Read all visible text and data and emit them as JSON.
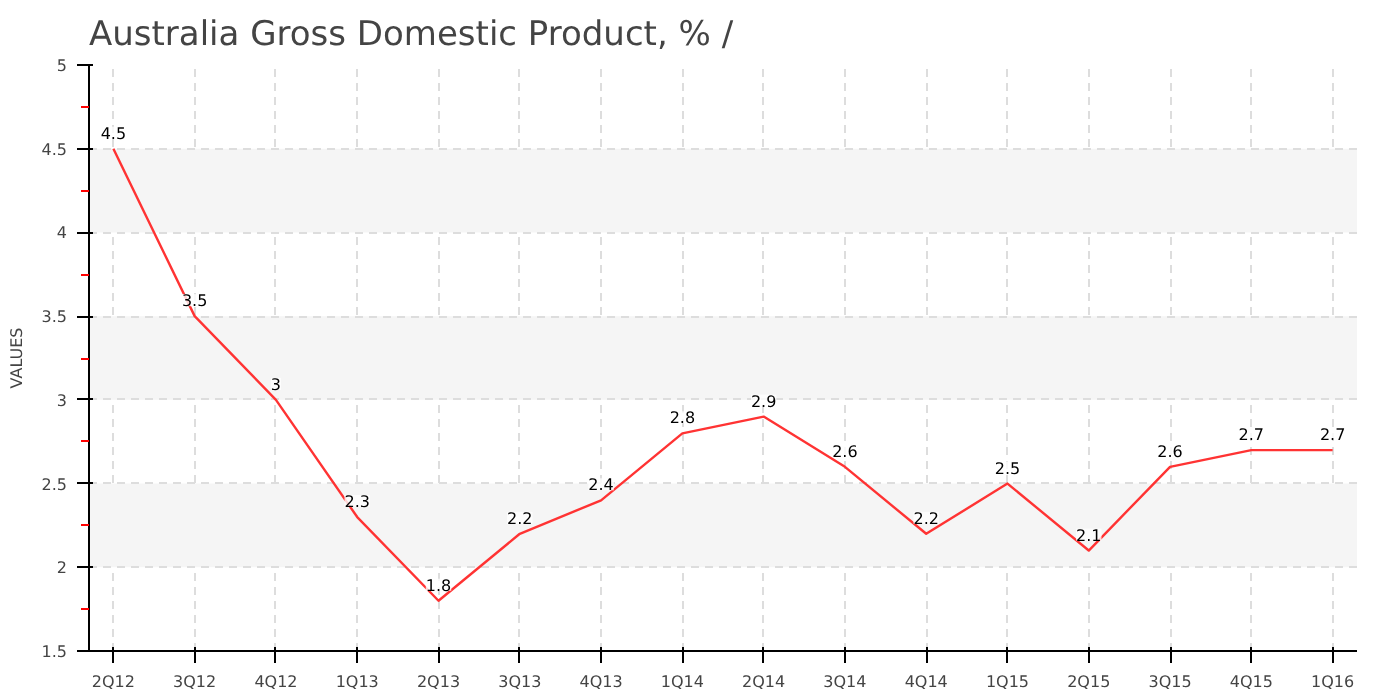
{
  "chart_data": {
    "type": "line",
    "title": "Australia Gross Domestic Product, % /",
    "ylabel": "VALUES",
    "categories": [
      "2Q12",
      "3Q12",
      "4Q12",
      "1Q13",
      "2Q13",
      "3Q13",
      "4Q13",
      "1Q14",
      "2Q14",
      "3Q14",
      "4Q14",
      "1Q15",
      "2Q15",
      "3Q15",
      "4Q15",
      "1Q16"
    ],
    "series": [
      {
        "color": "#ff3333",
        "values": [
          4.5,
          3.5,
          3,
          2.3,
          1.8,
          2.2,
          2.4,
          2.8,
          2.9,
          2.6,
          2.2,
          2.5,
          2.1,
          2.6,
          2.7,
          2.7
        ]
      }
    ],
    "ylim": [
      1.5,
      5
    ],
    "yticks": [
      1.5,
      2,
      2.5,
      3,
      3.5,
      4,
      4.5,
      5
    ],
    "grid": true,
    "data_labels": true,
    "marker": "none",
    "line_style": "solid"
  }
}
